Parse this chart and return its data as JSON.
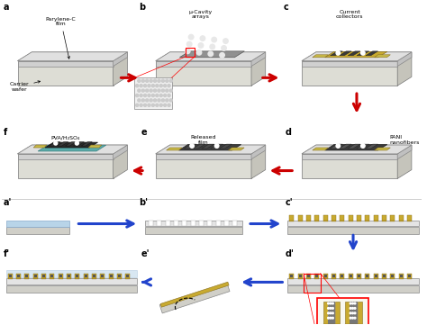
{
  "bg_color": "#ffffff",
  "wafer_top": "#e5e5de",
  "wafer_front": "#ddddd5",
  "wafer_side": "#c5c4bb",
  "parylene_top": "#e0e0e0",
  "parylene_front": "#d0d0d0",
  "parylene_side": "#c0c0c0",
  "gold_color": "#c8aa30",
  "gold_edge": "#8a7020",
  "dark_device": "#3a3a3a",
  "teal_color": "#5aabaa",
  "light_blue": "#b8d4e8",
  "red_arrow_color": "#cc0000",
  "blue_arrow_color": "#2244cc",
  "gray_layer": "#d0cfc8",
  "white_layer": "#e8e8e8",
  "panel_b_label": "μ-Cavity\narrays",
  "panel_c_label": "Current\ncollectors",
  "panel_d_label": "PANI\nnanofibers",
  "panel_e_label": "Released\nfilm",
  "panel_f_label": "PVA/H₂SO₄"
}
